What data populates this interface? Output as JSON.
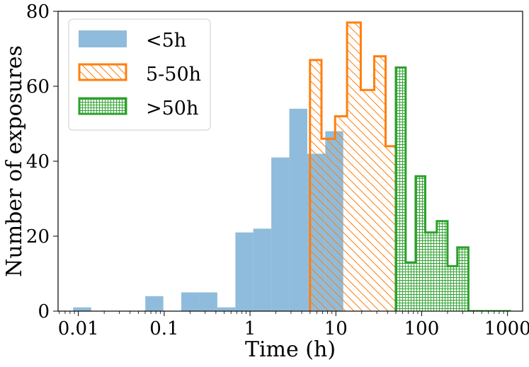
{
  "chart_data": {
    "type": "histogram",
    "xscale": "log",
    "xlabel": "Time (h)",
    "ylabel": "Number of exposures",
    "xlim": [
      0.0058,
      1500
    ],
    "ylim": [
      0,
      80
    ],
    "xticks": [
      {
        "value": 0.01,
        "label": "0.01"
      },
      {
        "value": 0.1,
        "label": "0.1"
      },
      {
        "value": 1,
        "label": "1"
      },
      {
        "value": 10,
        "label": "10"
      },
      {
        "value": 100,
        "label": "100"
      },
      {
        "value": 1000,
        "label": "1000"
      }
    ],
    "yticks": [
      {
        "value": 0,
        "label": "0"
      },
      {
        "value": 20,
        "label": "20"
      },
      {
        "value": 40,
        "label": "40"
      },
      {
        "value": 60,
        "label": "60"
      },
      {
        "value": 80,
        "label": "80"
      }
    ],
    "legend": {
      "placement": "top-left"
    },
    "series": [
      {
        "name": "<5h",
        "style": "filled",
        "color": "#8fbcdc",
        "bins": [
          {
            "x0": 0.0087,
            "x1": 0.0141,
            "count": 1
          },
          {
            "x0": 0.0141,
            "x1": 0.0229,
            "count": 0
          },
          {
            "x0": 0.0229,
            "x1": 0.0371,
            "count": 0
          },
          {
            "x0": 0.0371,
            "x1": 0.0602,
            "count": 0
          },
          {
            "x0": 0.0602,
            "x1": 0.0977,
            "count": 4
          },
          {
            "x0": 0.0977,
            "x1": 0.158,
            "count": 0
          },
          {
            "x0": 0.158,
            "x1": 0.257,
            "count": 5
          },
          {
            "x0": 0.257,
            "x1": 0.416,
            "count": 5
          },
          {
            "x0": 0.416,
            "x1": 0.675,
            "count": 1
          },
          {
            "x0": 0.675,
            "x1": 1.09,
            "count": 21
          },
          {
            "x0": 1.09,
            "x1": 1.77,
            "count": 22
          },
          {
            "x0": 1.77,
            "x1": 2.87,
            "count": 41
          },
          {
            "x0": 2.87,
            "x1": 4.65,
            "count": 54
          },
          {
            "x0": 4.65,
            "x1": 7.54,
            "count": 42
          },
          {
            "x0": 7.54,
            "x1": 12.2,
            "count": 48
          }
        ]
      },
      {
        "name": "5-50h",
        "style": "hatched-diagonal",
        "color": "#ff7f0e",
        "bins": [
          {
            "x0": 5.0,
            "x1": 6.8,
            "count": 67
          },
          {
            "x0": 6.8,
            "x1": 9.8,
            "count": 46
          },
          {
            "x0": 9.8,
            "x1": 13.5,
            "count": 52
          },
          {
            "x0": 13.5,
            "x1": 19.5,
            "count": 77
          },
          {
            "x0": 19.5,
            "x1": 28.0,
            "count": 59
          },
          {
            "x0": 28.0,
            "x1": 38.0,
            "count": 68
          },
          {
            "x0": 38.0,
            "x1": 50.0,
            "count": 44
          }
        ]
      },
      {
        "name": ">50h",
        "style": "hatched-grid",
        "color": "#2ca02c",
        "bins": [
          {
            "x0": 50,
            "x1": 65,
            "count": 65
          },
          {
            "x0": 65,
            "x1": 85,
            "count": 13
          },
          {
            "x0": 85,
            "x1": 110,
            "count": 36
          },
          {
            "x0": 110,
            "x1": 150,
            "count": 21
          },
          {
            "x0": 150,
            "x1": 200,
            "count": 24
          },
          {
            "x0": 200,
            "x1": 260,
            "count": 12
          },
          {
            "x0": 260,
            "x1": 350,
            "count": 17
          },
          {
            "x0": 350,
            "x1": 1100,
            "count": 0
          }
        ]
      }
    ]
  }
}
